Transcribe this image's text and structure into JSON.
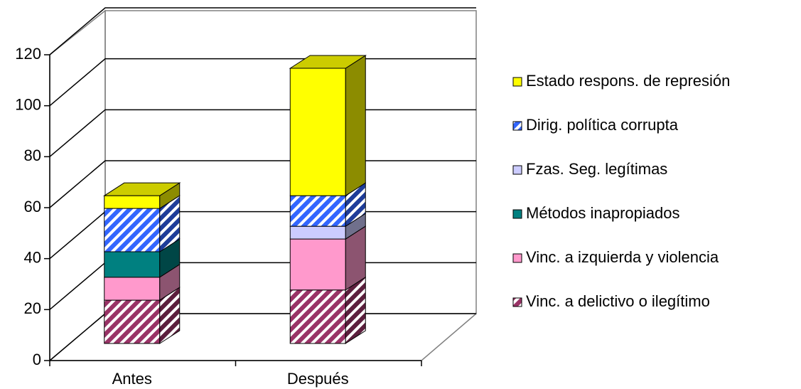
{
  "chart_data": {
    "type": "bar3d_stacked",
    "categories": [
      "Antes",
      "Después"
    ],
    "series": [
      {
        "name": "Vinc. a delictivo o ilegítimo",
        "color": "#993366",
        "hatch": true,
        "values": [
          17,
          21
        ]
      },
      {
        "name": "Vinc. a izquierda y violencia",
        "color": "#ff99cc",
        "hatch": false,
        "values": [
          9,
          20
        ]
      },
      {
        "name": "Métodos inapropiados",
        "color": "#008080",
        "hatch": false,
        "values": [
          10,
          0
        ]
      },
      {
        "name": "Fzas. Seg. legítimas",
        "color": "#ccccff",
        "hatch": false,
        "values": [
          0,
          5
        ]
      },
      {
        "name": "Dirig. política corrupta",
        "color": "#3366ff",
        "hatch": true,
        "values": [
          17,
          12
        ]
      },
      {
        "name": "Estado respons. de represión",
        "color": "#ffff00",
        "hatch": false,
        "values": [
          5,
          50
        ]
      }
    ],
    "ylim": [
      0,
      120
    ],
    "yticks": [
      0,
      20,
      40,
      60,
      80,
      100,
      120
    ],
    "grid": true,
    "legend": "right"
  }
}
